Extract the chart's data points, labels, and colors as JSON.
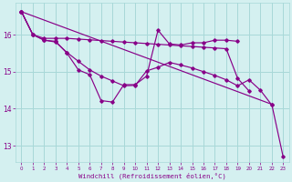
{
  "background_color": "#d4f0f0",
  "grid_color": "#a8d8d8",
  "line_color": "#880088",
  "xlabel": "Windchill (Refroidissement éolien,°C)",
  "xlabel_color": "#880088",
  "xlim": [
    -0.5,
    23.5
  ],
  "ylim": [
    12.55,
    16.85
  ],
  "yticks": [
    13,
    14,
    15,
    16
  ],
  "xticks": [
    0,
    1,
    2,
    3,
    4,
    5,
    6,
    7,
    8,
    9,
    10,
    11,
    12,
    13,
    14,
    15,
    16,
    17,
    18,
    19,
    20,
    21,
    22,
    23
  ],
  "series": {
    "s1": [
      16.62,
      16.0,
      15.9,
      15.9,
      15.9,
      15.88,
      15.86,
      15.84,
      15.82,
      15.8,
      15.78,
      15.76,
      15.74,
      15.72,
      15.7,
      15.68,
      15.66,
      15.64,
      15.62,
      14.82,
      14.48,
      null,
      null,
      null
    ],
    "s2": [
      16.62,
      16.0,
      15.85,
      15.82,
      15.5,
      15.05,
      14.92,
      14.22,
      14.18,
      14.65,
      14.65,
      14.88,
      16.12,
      15.75,
      15.72,
      15.78,
      15.78,
      15.85,
      15.85,
      15.82,
      null,
      null,
      null,
      null
    ],
    "s3": [
      16.62,
      16.0,
      15.85,
      15.8,
      15.52,
      15.28,
      15.05,
      14.88,
      14.75,
      14.62,
      14.63,
      15.02,
      15.12,
      15.25,
      15.18,
      15.1,
      15.0,
      14.9,
      14.78,
      14.62,
      14.78,
      14.5,
      14.1,
      null
    ],
    "s4": [
      16.62,
      null,
      null,
      null,
      null,
      null,
      null,
      null,
      null,
      null,
      null,
      null,
      null,
      null,
      null,
      null,
      null,
      null,
      null,
      null,
      null,
      null,
      14.12,
      12.7
    ]
  }
}
